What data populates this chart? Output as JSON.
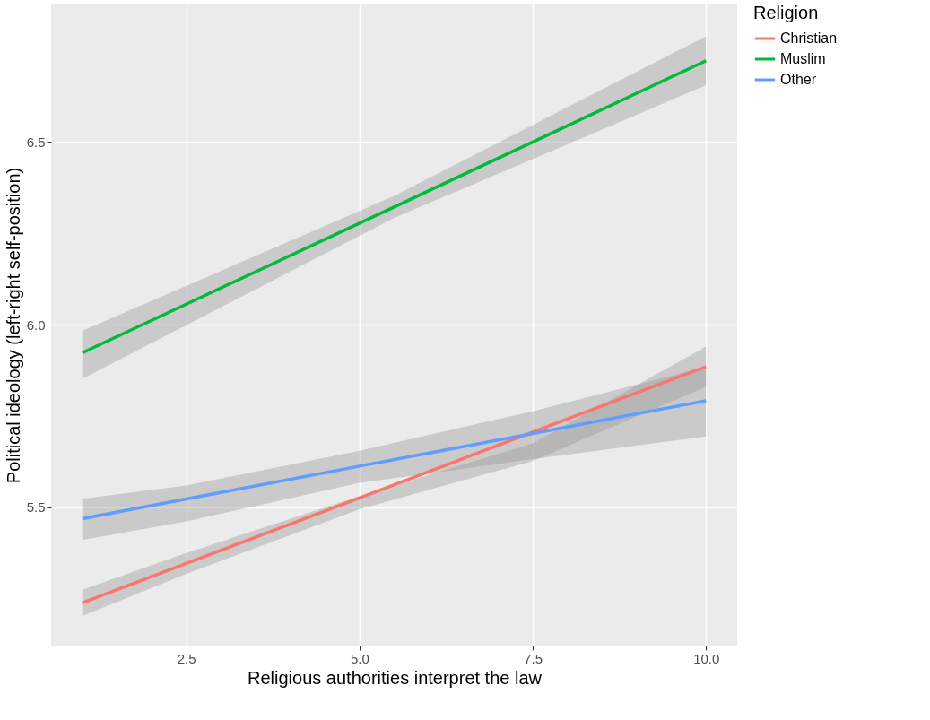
{
  "chart_data": {
    "type": "line",
    "xlabel": "Religious authorities interpret the law",
    "ylabel": "Political ideology (left-right self-position)",
    "legend_title": "Religion",
    "xlim": [
      0.55,
      10.45
    ],
    "ylim": [
      5.122,
      6.876
    ],
    "xticks": [
      2.5,
      {
        "value": 5,
        "label": "5.0"
      },
      7.5,
      {
        "value": 10,
        "label": "10.0"
      }
    ],
    "yticks": [
      5.5,
      {
        "value": 6,
        "label": "6.0"
      },
      6.5
    ],
    "grid": true,
    "legend": "right",
    "marker": "none",
    "line_style": "solid",
    "series": [
      {
        "name": "Christian",
        "color": "#f8766d",
        "x": [
          1,
          2.5,
          5,
          7.5,
          10
        ],
        "values": [
          5.239,
          5.347,
          5.526,
          5.706,
          5.885
        ],
        "lower": [
          5.203,
          5.318,
          5.495,
          5.627,
          5.83
        ],
        "upper": [
          5.275,
          5.375,
          5.531,
          5.675,
          5.94
        ]
      },
      {
        "name": "Muslim",
        "color": "#00ba38",
        "x": [
          1,
          5.5,
          10
        ],
        "values": [
          5.923,
          6.322,
          6.722
        ],
        "lower": [
          5.852,
          6.292,
          6.655
        ],
        "upper": [
          5.983,
          6.352,
          6.789
        ]
      },
      {
        "name": "Other",
        "color": "#619cff",
        "x": [
          1,
          2.5,
          5,
          7.5,
          10
        ],
        "values": [
          5.469,
          5.523,
          5.613,
          5.702,
          5.792
        ],
        "lower": [
          5.411,
          5.462,
          5.567,
          5.632,
          5.694
        ],
        "upper": [
          5.524,
          5.56,
          5.655,
          5.763,
          5.885
        ]
      }
    ]
  }
}
